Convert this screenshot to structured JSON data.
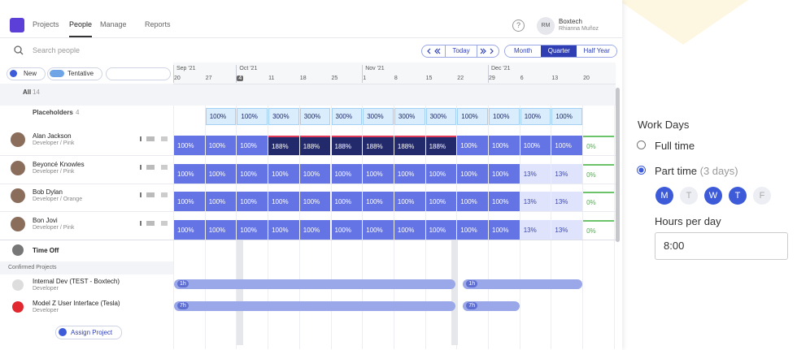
{
  "nav": {
    "tabs": [
      "Projects",
      "People",
      "Manage",
      "Reports"
    ],
    "help": "?",
    "user": {
      "initials": "RM",
      "company": "Boxtech",
      "name": "Rhianna Muñoz"
    }
  },
  "search": {
    "placeholder": "Search people"
  },
  "date_nav": {
    "today": "Today",
    "views": [
      "Month",
      "Quarter",
      "Half Year"
    ]
  },
  "toolbar": {
    "new": "New",
    "tentative": "Tentative"
  },
  "timeline": {
    "months": [
      "Sep '21",
      "Oct '21",
      "Nov '21",
      "Dec '21"
    ],
    "weeks": [
      "20",
      "27",
      "4",
      "11",
      "18",
      "25",
      "1",
      "8",
      "15",
      "22",
      "29",
      "6",
      "13",
      "20"
    ]
  },
  "groups": {
    "all": "All",
    "all_count": "14",
    "placeholders": "Placeholders",
    "placeholders_count": "4"
  },
  "placeholder_cells": [
    null,
    "100%",
    "100%",
    "300%",
    "300%",
    "300%",
    "300%",
    "300%",
    "300%",
    "100%",
    "100%",
    "100%",
    "100%",
    null
  ],
  "people": [
    {
      "name": "Alan Jackson",
      "role": "Developer / Pink",
      "cells": [
        "100%",
        "100%",
        "100%",
        "188%",
        "188%",
        "188%",
        "188%",
        "188%",
        "188%",
        "100%",
        "100%",
        "100%",
        "100%",
        "0%"
      ]
    },
    {
      "name": "Beyoncé Knowles",
      "role": "Developer / Pink",
      "cells": [
        "100%",
        "100%",
        "100%",
        "100%",
        "100%",
        "100%",
        "100%",
        "100%",
        "100%",
        "100%",
        "100%",
        "13%",
        "13%",
        "0%"
      ]
    },
    {
      "name": "Bob Dylan",
      "role": "Developer / Orange",
      "cells": [
        "100%",
        "100%",
        "100%",
        "100%",
        "100%",
        "100%",
        "100%",
        "100%",
        "100%",
        "100%",
        "100%",
        "13%",
        "13%",
        "0%"
      ]
    },
    {
      "name": "Bon Jovi",
      "role": "Developer / Pink",
      "cells": [
        "100%",
        "100%",
        "100%",
        "100%",
        "100%",
        "100%",
        "100%",
        "100%",
        "100%",
        "100%",
        "100%",
        "13%",
        "13%",
        "0%"
      ]
    }
  ],
  "time_off": "Time Off",
  "confirmed_projects": "Confirmed Projects",
  "projects": [
    {
      "name": "Internal Dev (TEST - Boxtech)",
      "role": "Developer",
      "bars": [
        "1h",
        "1h"
      ]
    },
    {
      "name": "Model Z User Interface (Tesla)",
      "role": "Developer",
      "bars": [
        "7h",
        "7h"
      ]
    }
  ],
  "assign_project": "Assign Project",
  "panel": {
    "title": "Work Days",
    "full_time": "Full time",
    "part_time": "Part time",
    "part_time_days": "(3 days)",
    "days": [
      {
        "label": "M",
        "active": true
      },
      {
        "label": "T",
        "active": false
      },
      {
        "label": "W",
        "active": true
      },
      {
        "label": "T",
        "active": true
      },
      {
        "label": "F",
        "active": false
      }
    ],
    "hours_label": "Hours per day",
    "hours": "8:00"
  }
}
